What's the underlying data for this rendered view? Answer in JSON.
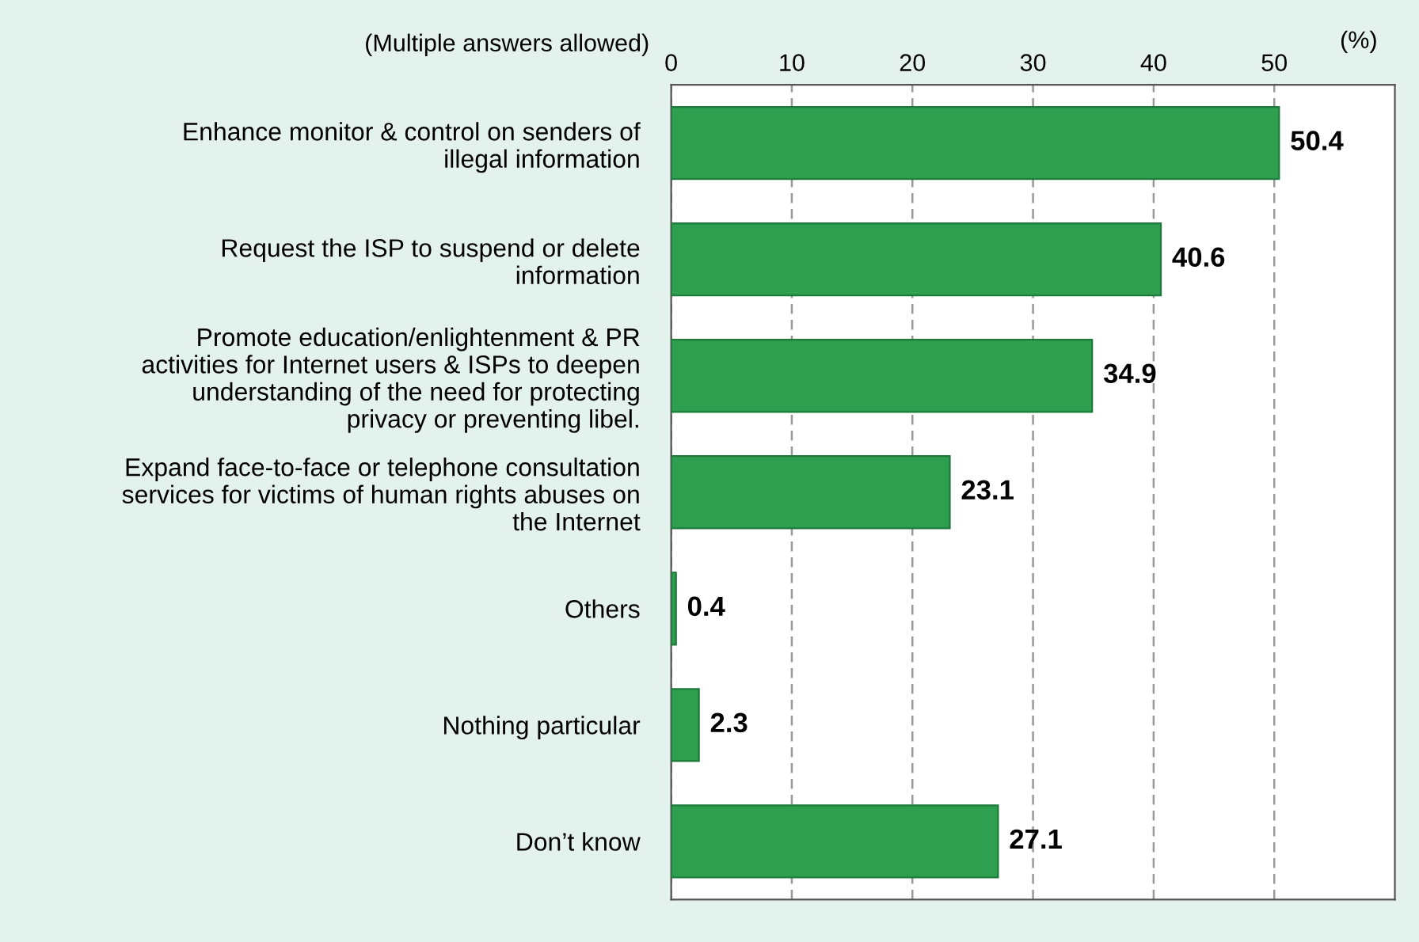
{
  "chart_data": {
    "type": "bar",
    "orientation": "horizontal",
    "categories": [
      "Enhance monitor & control on senders of\nillegal information",
      "Request the ISP to suspend or delete\ninformation",
      "Promote education/enlightenment & PR\nactivities for Internet users & ISPs to deepen\nunderstanding of the need for protecting\nprivacy or preventing libel.",
      "Expand face-to-face or telephone consultation\nservices for victims of human rights abuses on\nthe Internet",
      "Others",
      "Nothing particular",
      "Don’t know"
    ],
    "values": [
      50.4,
      40.6,
      34.9,
      23.1,
      0.4,
      2.3,
      27.1
    ],
    "color": "#2e9e4f",
    "xlim": [
      0,
      60
    ],
    "xticks": [
      0,
      10,
      20,
      30,
      40,
      50
    ],
    "xlabel": "(%)",
    "annotations": [
      "(Multiple answers allowed)"
    ],
    "data_labels": true,
    "grid": "x"
  }
}
